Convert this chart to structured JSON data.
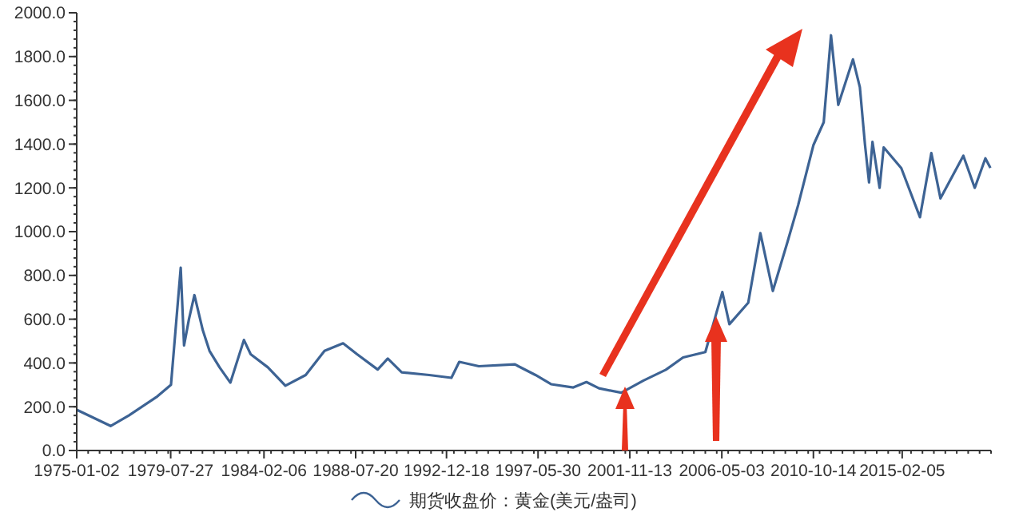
{
  "chart_data": {
    "type": "line",
    "x": [
      "1975-01-02",
      "1976-08-25",
      "1977-07-15",
      "1978-12-01",
      "1979-08-01",
      "1980-01-21",
      "1980-03-20",
      "1980-06-15",
      "1980-09-20",
      "1981-02-15",
      "1981-06-15",
      "1981-12-10",
      "1982-06-20",
      "1983-02-15",
      "1983-06-15",
      "1984-04-15",
      "1985-02-20",
      "1986-02-15",
      "1987-01-15",
      "1987-12-10",
      "1988-08-15",
      "1989-08-15",
      "1990-02-10",
      "1990-10-15",
      "1992-02-15",
      "1993-03-15",
      "1993-08-01",
      "1994-07-15",
      "1996-04-15",
      "1996-06-15",
      "1997-04-15",
      "1998-01-15",
      "1999-02-15",
      "1999-10-05",
      "2000-05-15",
      "2001-06-15",
      "2002-07-15",
      "2003-08-15",
      "2004-06-15",
      "2005-07-15",
      "2006-05-12",
      "2006-09-15",
      "2007-08-15",
      "2008-03-17",
      "2008-10-24",
      "2009-07-15",
      "2010-01-15",
      "2010-10-15",
      "2011-04-15",
      "2011-08-22",
      "2011-12-29",
      "2012-09-15",
      "2013-01-15",
      "2013-04-15",
      "2013-06-27",
      "2013-08-27",
      "2013-12-31",
      "2014-03-14",
      "2015-01-20",
      "2015-12-17",
      "2016-07-06",
      "2016-12-15",
      "2018-01-25",
      "2018-08-15",
      "2019-02-20",
      "2019-05-20"
    ],
    "series": [
      {
        "name": "期货收盘价：黄金(美元/盎司)",
        "color": "#3d6394",
        "values": [
          186,
          112,
          160,
          247,
          300,
          835,
          480,
          600,
          710,
          550,
          455,
          380,
          310,
          505,
          440,
          380,
          296,
          345,
          455,
          490,
          440,
          370,
          420,
          357,
          345,
          332,
          405,
          385,
          394,
          385,
          345,
          303,
          288,
          313,
          284,
          264,
          320,
          369,
          425,
          450,
          724,
          577,
          675,
          993,
          729,
          956,
          1120,
          1396,
          1500,
          1897,
          1579,
          1787,
          1660,
          1400,
          1225,
          1410,
          1200,
          1385,
          1290,
          1066,
          1359,
          1152,
          1347,
          1200,
          1335,
          1291
        ]
      }
    ],
    "xlim": [
      "1975-01-02",
      "2019-05-31"
    ],
    "xticks": [
      {
        "value": "1975-01-02",
        "label": "1975-01-02"
      },
      {
        "value": "1979-07-27",
        "label": "1979-07-27"
      },
      {
        "value": "1984-02-06",
        "label": "1984-02-06"
      },
      {
        "value": "1988-07-20",
        "label": "1988-07-20"
      },
      {
        "value": "1992-12-18",
        "label": "1992-12-18"
      },
      {
        "value": "1997-05-30",
        "label": "1997-05-30"
      },
      {
        "value": "2001-11-13",
        "label": "2001-11-13"
      },
      {
        "value": "2006-05-03",
        "label": "2006-05-03"
      },
      {
        "value": "2010-10-14",
        "label": "2010-10-14"
      },
      {
        "value": "2015-02-05",
        "label": "2015-02-05"
      }
    ],
    "ylim": [
      0,
      2000
    ],
    "yticks": [
      {
        "value": 0,
        "label": "0.0"
      },
      {
        "value": 200,
        "label": "200.0"
      },
      {
        "value": 400,
        "label": "400.0"
      },
      {
        "value": 600,
        "label": "600.0"
      },
      {
        "value": 800,
        "label": "800.0"
      },
      {
        "value": 1000,
        "label": "1000.0"
      },
      {
        "value": 1200,
        "label": "1200.0"
      },
      {
        "value": 1400,
        "label": "1400.0"
      },
      {
        "value": 1600,
        "label": "1600.0"
      },
      {
        "value": 1800,
        "label": "1800.0"
      },
      {
        "value": 2000,
        "label": "2000.0"
      }
    ],
    "grid": false,
    "legend": "bottom",
    "marker": "none",
    "line_style": "solid"
  }
}
